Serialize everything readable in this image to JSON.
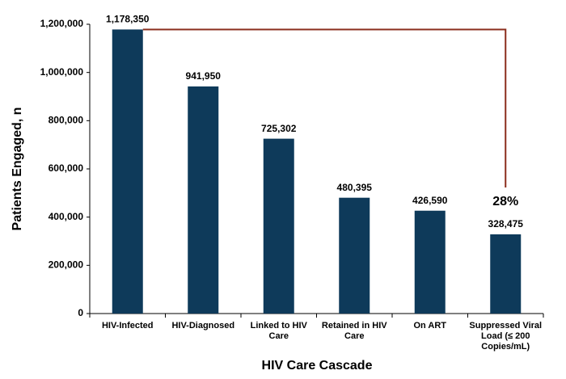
{
  "chart_data": {
    "type": "bar",
    "categories": [
      "HIV-Infected",
      "HIV-Diagnosed",
      "Linked to HIV Care",
      "Retained in HIV Care",
      "On ART",
      "Suppressed Viral Load (≤ 200 Copies/mL)"
    ],
    "values": [
      1178350,
      941950,
      725302,
      480395,
      426590,
      328475
    ],
    "value_labels": [
      "1,178,350",
      "941,950",
      "725,302",
      "480,395",
      "426,590",
      "328,475"
    ],
    "color": "#0e3a5a",
    "ylim": [
      0,
      1200000
    ],
    "yticks": [
      0,
      {
        "value": 200000,
        "label": "200,000"
      },
      {
        "value": 400000,
        "label": "400,000"
      },
      {
        "value": 600000,
        "label": "600,000"
      },
      {
        "value": 800000,
        "label": "800,000"
      },
      {
        "value": 1000000,
        "label": "1,000,000"
      },
      {
        "value": 1200000,
        "label": "1,200,000"
      }
    ],
    "y_label": "Patients Engaged, n",
    "x_label": "HIV Care Cascade",
    "annotation": "28%",
    "annotation_color": "#8b2d1c"
  }
}
